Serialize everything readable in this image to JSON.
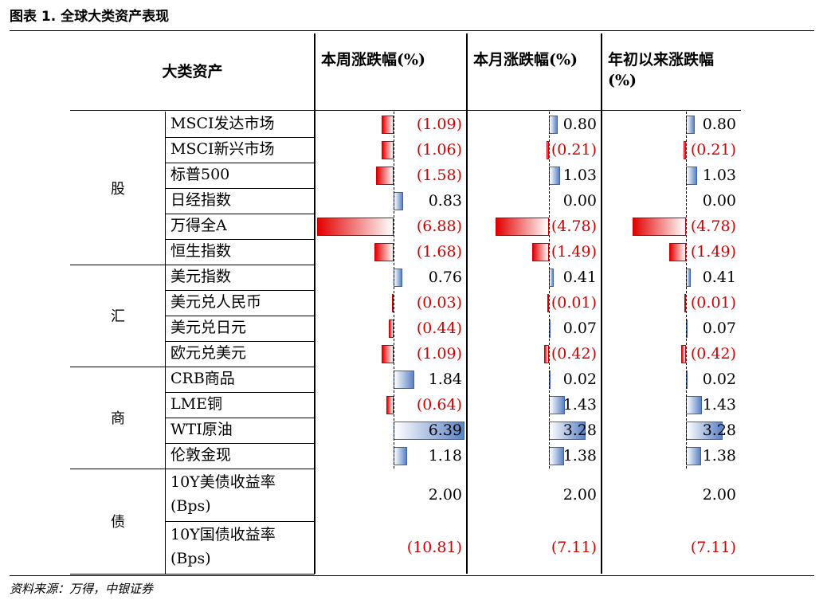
{
  "title": "图表 1. 全球大类资产表现",
  "source": "资料来源：万得，中银证券",
  "headers": {
    "asset": "大类资产",
    "week": "本周涨跌幅(%)",
    "month": "本月涨跌幅(%)",
    "ytd": "年初以来涨跌幅(%)"
  },
  "groups": [
    {
      "name": "股",
      "rows": [
        {
          "label": "MSCI发达市场",
          "week": "(1.09)",
          "month": "0.80",
          "ytd": "0.80"
        },
        {
          "label": "MSCI新兴市场",
          "week": "(1.06)",
          "month": "(0.21)",
          "ytd": "(0.21)"
        },
        {
          "label": "标普500",
          "week": "(1.58)",
          "month": "1.03",
          "ytd": "1.03"
        },
        {
          "label": "日经指数",
          "week": "0.83",
          "month": "0.00",
          "ytd": "0.00"
        },
        {
          "label": "万得全A",
          "week": "(6.88)",
          "month": "(4.78)",
          "ytd": "(4.78)"
        },
        {
          "label": "恒生指数",
          "week": "(1.68)",
          "month": "(1.49)",
          "ytd": "(1.49)"
        }
      ]
    },
    {
      "name": "汇",
      "rows": [
        {
          "label": "美元指数",
          "week": "0.76",
          "month": "0.41",
          "ytd": "0.41"
        },
        {
          "label": "美元兑人民币",
          "week": "(0.03)",
          "month": "(0.01)",
          "ytd": "(0.01)"
        },
        {
          "label": "美元兑日元",
          "week": "(0.44)",
          "month": "0.07",
          "ytd": "0.07"
        },
        {
          "label": "欧元兑美元",
          "week": "(1.09)",
          "month": "(0.42)",
          "ytd": "(0.42)"
        }
      ]
    },
    {
      "name": "商",
      "rows": [
        {
          "label": "CRB商品",
          "week": "1.84",
          "month": "0.02",
          "ytd": "0.02"
        },
        {
          "label": "LME铜",
          "week": "(0.64)",
          "month": "1.43",
          "ytd": "1.43"
        },
        {
          "label": "WTI原油",
          "week": "6.39",
          "month": "3.28",
          "ytd": "3.28"
        },
        {
          "label": "伦敦金现",
          "week": "1.18",
          "month": "1.38",
          "ytd": "1.38"
        }
      ]
    },
    {
      "name": "债",
      "rows": [
        {
          "label": "10Y美债收益率(Bps)",
          "week": "2.00",
          "month": "2.00",
          "ytd": "2.00"
        },
        {
          "label": "10Y国债收益率(Bps)",
          "week": "(10.81)",
          "month": "(7.11)",
          "ytd": "(7.11)"
        }
      ]
    }
  ],
  "chart_data": {
    "type": "table",
    "columns": [
      "本周涨跌幅(%)",
      "本月涨跌幅(%)",
      "年初以来涨跌幅(%)"
    ],
    "rows": [
      {
        "asset": "MSCI发达市场",
        "values": [
          -1.09,
          0.8,
          0.8
        ]
      },
      {
        "asset": "MSCI新兴市场",
        "values": [
          -1.06,
          -0.21,
          -0.21
        ]
      },
      {
        "asset": "标普500",
        "values": [
          -1.58,
          1.03,
          1.03
        ]
      },
      {
        "asset": "日经指数",
        "values": [
          0.83,
          0.0,
          0.0
        ]
      },
      {
        "asset": "万得全A",
        "values": [
          -6.88,
          -4.78,
          -4.78
        ]
      },
      {
        "asset": "恒生指数",
        "values": [
          -1.68,
          -1.49,
          -1.49
        ]
      },
      {
        "asset": "美元指数",
        "values": [
          0.76,
          0.41,
          0.41
        ]
      },
      {
        "asset": "美元兑人民币",
        "values": [
          -0.03,
          -0.01,
          -0.01
        ]
      },
      {
        "asset": "美元兑日元",
        "values": [
          -0.44,
          0.07,
          0.07
        ]
      },
      {
        "asset": "欧元兑美元",
        "values": [
          -1.09,
          -0.42,
          -0.42
        ]
      },
      {
        "asset": "CRB商品",
        "values": [
          1.84,
          0.02,
          0.02
        ]
      },
      {
        "asset": "LME铜",
        "values": [
          -0.64,
          1.43,
          1.43
        ]
      },
      {
        "asset": "WTI原油",
        "values": [
          6.39,
          3.28,
          3.28
        ]
      },
      {
        "asset": "伦敦金现",
        "values": [
          1.18,
          1.38,
          1.38
        ]
      },
      {
        "asset": "10Y美债收益率(Bps)",
        "values": [
          2.0,
          2.0,
          2.0
        ]
      },
      {
        "asset": "10Y国债收益率(Bps)",
        "values": [
          -10.81,
          -7.11,
          -7.11
        ]
      }
    ],
    "bar_rows": 14,
    "colors": {
      "positive": "#5a82c4",
      "negative": "#e30000",
      "negative_text": "#d40000"
    }
  }
}
